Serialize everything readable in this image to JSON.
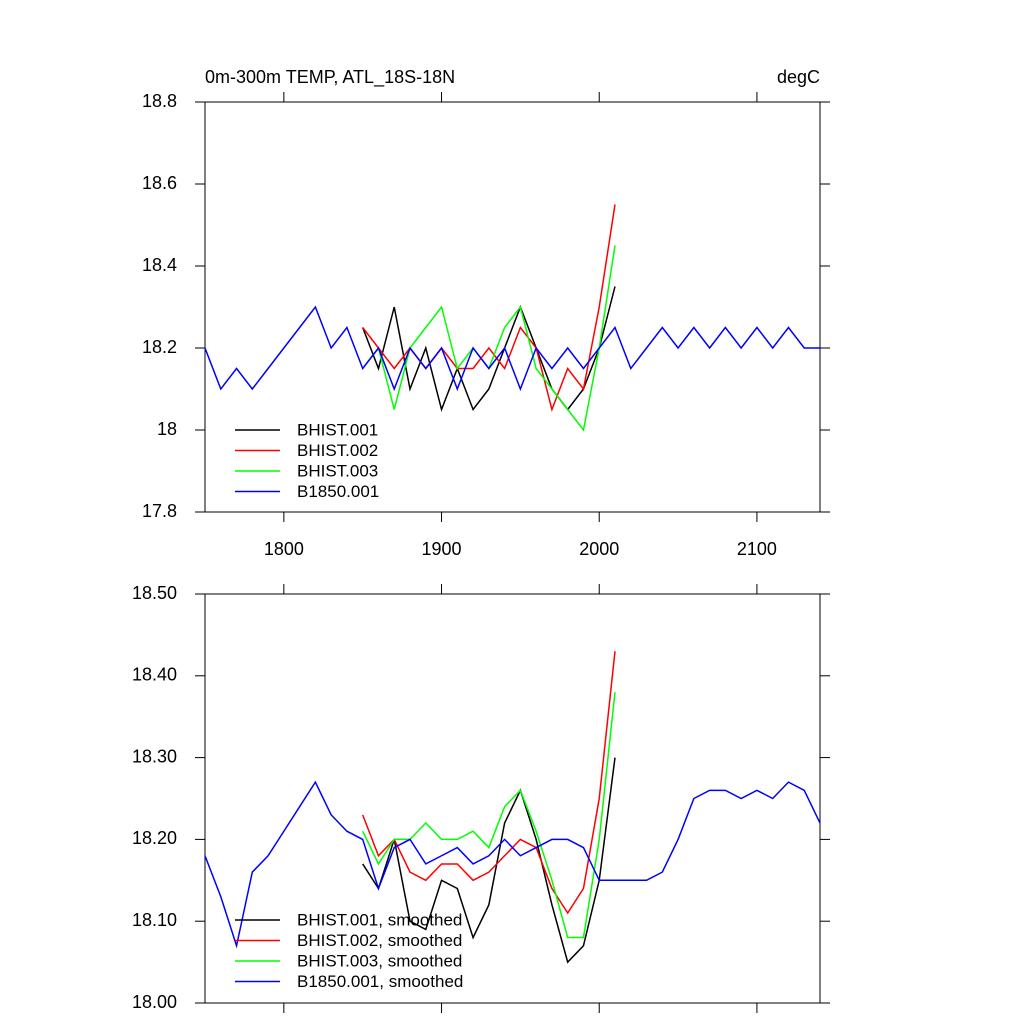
{
  "chart_data": [
    {
      "type": "line",
      "title": "0m-300m TEMP, ATL_18S-18N",
      "unit": "degC",
      "xlim": [
        1750,
        2140
      ],
      "xticks": [
        1800,
        1900,
        2000,
        2100
      ],
      "xtick_labels": true,
      "ylim": [
        17.8,
        18.8
      ],
      "yticks": [
        17.8,
        18,
        18.2,
        18.4,
        18.6,
        18.8
      ],
      "x": [
        1750,
        1760,
        1770,
        1780,
        1790,
        1800,
        1810,
        1820,
        1830,
        1840,
        1850,
        1860,
        1870,
        1880,
        1890,
        1900,
        1910,
        1920,
        1930,
        1940,
        1950,
        1960,
        1970,
        1980,
        1990,
        2000,
        2010,
        2020,
        2030,
        2040,
        2050,
        2060,
        2070,
        2080,
        2090,
        2100,
        2110,
        2120,
        2130,
        2140
      ],
      "series": [
        {
          "name": "BHIST.001",
          "color": "#000000",
          "values": [
            null,
            null,
            null,
            null,
            null,
            null,
            null,
            null,
            null,
            null,
            18.25,
            18.15,
            18.3,
            18.1,
            18.2,
            18.05,
            18.15,
            18.05,
            18.1,
            18.2,
            18.3,
            18.2,
            18.1,
            18.05,
            18.1,
            18.2,
            18.35,
            null,
            null,
            null,
            null,
            null,
            null,
            null,
            null,
            null,
            null,
            null,
            null,
            null
          ]
        },
        {
          "name": "BHIST.002",
          "color": "#ff0000",
          "values": [
            null,
            null,
            null,
            null,
            null,
            null,
            null,
            null,
            null,
            null,
            18.25,
            18.2,
            18.15,
            18.2,
            18.15,
            18.2,
            18.15,
            18.15,
            18.2,
            18.15,
            18.25,
            18.2,
            18.05,
            18.15,
            18.1,
            18.3,
            18.55,
            null,
            null,
            null,
            null,
            null,
            null,
            null,
            null,
            null,
            null,
            null,
            null,
            null
          ]
        },
        {
          "name": "BHIST.003",
          "color": "#00ff00",
          "values": [
            null,
            null,
            null,
            null,
            null,
            null,
            null,
            null,
            null,
            null,
            18.15,
            18.2,
            18.05,
            18.2,
            18.25,
            18.3,
            18.15,
            18.2,
            18.15,
            18.25,
            18.3,
            18.15,
            18.1,
            18.05,
            18.0,
            18.2,
            18.45,
            null,
            null,
            null,
            null,
            null,
            null,
            null,
            null,
            null,
            null,
            null,
            null,
            null
          ]
        },
        {
          "name": "B1850.001",
          "color": "#0000ff",
          "values": [
            18.2,
            18.1,
            18.15,
            18.1,
            18.15,
            18.2,
            18.25,
            18.3,
            18.2,
            18.25,
            18.15,
            18.2,
            18.1,
            18.2,
            18.15,
            18.2,
            18.1,
            18.2,
            18.15,
            18.2,
            18.1,
            18.2,
            18.15,
            18.2,
            18.15,
            18.2,
            18.25,
            18.15,
            18.2,
            18.25,
            18.2,
            18.25,
            18.2,
            18.25,
            18.2,
            18.25,
            18.2,
            18.25,
            18.2,
            18.2
          ]
        }
      ]
    },
    {
      "type": "line",
      "xlim": [
        1750,
        2140
      ],
      "xticks": [
        1800,
        1900,
        2000,
        2100
      ],
      "xtick_labels": false,
      "ylim": [
        18.0,
        18.5
      ],
      "yticks": [
        {
          "value": 18.0,
          "label": "18.00"
        },
        {
          "value": 18.1,
          "label": "18.10"
        },
        {
          "value": 18.2,
          "label": "18.20"
        },
        {
          "value": 18.3,
          "label": "18.30"
        },
        {
          "value": 18.4,
          "label": "18.40"
        },
        {
          "value": 18.5,
          "label": "18.50"
        }
      ],
      "x": [
        1750,
        1760,
        1770,
        1780,
        1790,
        1800,
        1810,
        1820,
        1830,
        1840,
        1850,
        1860,
        1870,
        1880,
        1890,
        1900,
        1910,
        1920,
        1930,
        1940,
        1950,
        1960,
        1970,
        1980,
        1990,
        2000,
        2010,
        2020,
        2030,
        2040,
        2050,
        2060,
        2070,
        2080,
        2090,
        2100,
        2110,
        2120,
        2130,
        2140
      ],
      "series": [
        {
          "name": "BHIST.001, smoothed",
          "color": "#000000",
          "values": [
            null,
            null,
            null,
            null,
            null,
            null,
            null,
            null,
            null,
            null,
            18.17,
            18.14,
            18.2,
            18.1,
            18.09,
            18.15,
            18.14,
            18.08,
            18.12,
            18.22,
            18.26,
            18.2,
            18.12,
            18.05,
            18.07,
            18.15,
            18.3,
            null,
            null,
            null,
            null,
            null,
            null,
            null,
            null,
            null,
            null,
            null,
            null,
            null
          ]
        },
        {
          "name": "BHIST.002, smoothed",
          "color": "#ff0000",
          "values": [
            null,
            null,
            null,
            null,
            null,
            null,
            null,
            null,
            null,
            null,
            18.23,
            18.18,
            18.2,
            18.16,
            18.15,
            18.17,
            18.17,
            18.15,
            18.16,
            18.18,
            18.2,
            18.19,
            18.14,
            18.11,
            18.14,
            18.25,
            18.43,
            null,
            null,
            null,
            null,
            null,
            null,
            null,
            null,
            null,
            null,
            null,
            null,
            null
          ]
        },
        {
          "name": "BHIST.003, smoothed",
          "color": "#00ff00",
          "values": [
            null,
            null,
            null,
            null,
            null,
            null,
            null,
            null,
            null,
            null,
            18.21,
            18.17,
            18.2,
            18.2,
            18.22,
            18.2,
            18.2,
            18.21,
            18.19,
            18.24,
            18.26,
            18.21,
            18.15,
            18.08,
            18.08,
            18.2,
            18.38,
            null,
            null,
            null,
            null,
            null,
            null,
            null,
            null,
            null,
            null,
            null,
            null,
            null
          ]
        },
        {
          "name": "B1850.001, smoothed",
          "color": "#0000ff",
          "values": [
            18.18,
            18.13,
            18.07,
            18.16,
            18.18,
            18.21,
            18.24,
            18.27,
            18.23,
            18.21,
            18.2,
            18.14,
            18.19,
            18.2,
            18.17,
            18.18,
            18.19,
            18.17,
            18.18,
            18.2,
            18.18,
            18.19,
            18.2,
            18.2,
            18.19,
            18.15,
            18.15,
            18.15,
            18.15,
            18.16,
            18.2,
            18.25,
            18.26,
            18.26,
            18.25,
            18.26,
            18.25,
            18.27,
            18.26,
            18.22
          ]
        }
      ]
    }
  ]
}
